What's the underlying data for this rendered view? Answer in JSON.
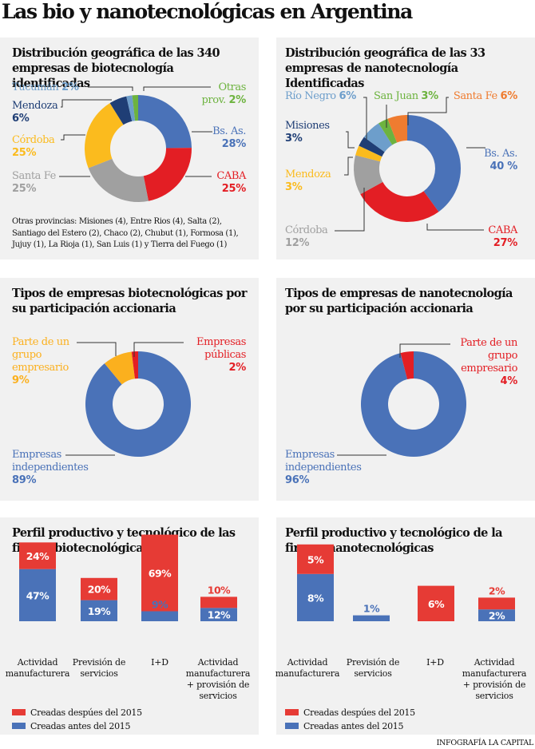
{
  "title": "Las bio y nanotecnológicas en Argentina",
  "credit": "INFOGRAFÍA LA CAPITAL",
  "colors": {
    "blue": "#4a72b8",
    "red": "#e31e24",
    "gray": "#a0a0a0",
    "yellow": "#fbbb1e",
    "navy": "#1f3e75",
    "lightblue": "#6d9ecb",
    "green": "#6db33f",
    "orange": "#ef7c30",
    "bar_red": "#e63b35",
    "bar_blue": "#4a72b8"
  },
  "panels": {
    "bio_geo": {
      "title": "Distribución geográfica de las 340 empresas de biotecnología identificadas",
      "note": "Otras provincias: Misiones (4), Entre Rios (4), Salta (2), Santiago del Estero (2), Chaco (2), Chubut (1), Formosa (1), Jujuy (1), La Rioja (1), San Luis (1) y Tierra del Fuego (1)",
      "labels": {
        "tucuman": {
          "name": "Tucumán",
          "value": "2%"
        },
        "otras": {
          "name1": "Otras",
          "name2": "prov.",
          "value": "2%"
        },
        "mendoza": {
          "name": "Mendoza",
          "value": "6%"
        },
        "bsas": {
          "name": "Bs. As.",
          "value": "28%"
        },
        "cordoba": {
          "name": "Córdoba",
          "value": "25%"
        },
        "santafe": {
          "name": "Santa Fe",
          "value": "25%"
        },
        "caba": {
          "name": "CABA",
          "value": "25%"
        }
      }
    },
    "nano_geo": {
      "title": "Distribución geográfica de las 33 empresas de nanotecnología Identificadas",
      "labels": {
        "rionegro": {
          "name": "Río Negro",
          "value": "6%"
        },
        "sanjuan": {
          "name": "San Juan",
          "value": "3%"
        },
        "santafe": {
          "name": "Santa Fe",
          "value": "6%"
        },
        "misiones": {
          "name": "Misiones",
          "value": "3%"
        },
        "bsas": {
          "name": "Bs. As.",
          "value": "40 %"
        },
        "mendoza": {
          "name": "Mendoza",
          "value": "3%"
        },
        "cordoba": {
          "name": "Córdoba",
          "value": "12%"
        },
        "caba": {
          "name": "CABA",
          "value": "27%"
        }
      }
    },
    "bio_types": {
      "title": "Tipos de empresas biotecnológicas por su participación accionaria",
      "labels": {
        "grupo": {
          "l1": "Parte de un",
          "l2": "grupo",
          "l3": "empresario",
          "value": "9%"
        },
        "publicas": {
          "l1": "Empresas",
          "l2": "públicas",
          "value": "2%"
        },
        "indep": {
          "l1": "Empresas",
          "l2": "independientes",
          "value": "89%"
        }
      }
    },
    "nano_types": {
      "title": "Tipos de empresas de nanotecnología por su participación accionaria",
      "labels": {
        "grupo": {
          "l1": "Parte de un",
          "l2": "grupo",
          "l3": "empresario",
          "value": "4%"
        },
        "indep": {
          "l1": "Empresas",
          "l2": "independientes",
          "value": "96%"
        }
      }
    },
    "bio_profile": {
      "title": "Perfil productivo y tecnológico de las firmas biotecnológicas",
      "legend": [
        "Creadas despúes del 2015",
        "Creadas antes del 2015"
      ]
    },
    "nano_profile": {
      "title": "Perfil productivo y tecnológico de la firmas nanotecnológicas",
      "legend": [
        "Creadas despúes del 2015",
        "Creadas antes del 2015"
      ]
    }
  },
  "chart_data": [
    {
      "id": "bio_geo",
      "type": "pie",
      "title": "Distribución geográfica de las 340 empresas de biotecnología identificadas",
      "donut": true,
      "categories": [
        "Bs. As.",
        "CABA",
        "Santa Fe",
        "Córdoba",
        "Mendoza",
        "Tucumán",
        "Otras prov."
      ],
      "values": [
        28,
        25,
        25,
        25,
        6,
        2,
        2
      ],
      "colors": [
        "#4a72b8",
        "#e31e24",
        "#a0a0a0",
        "#fbbb1e",
        "#1f3e75",
        "#6d9ecb",
        "#6db33f"
      ],
      "units": "%"
    },
    {
      "id": "nano_geo",
      "type": "pie",
      "title": "Distribución geográfica de las 33 empresas de nanotecnología Identificadas",
      "donut": true,
      "categories": [
        "Bs. As.",
        "CABA",
        "Córdoba",
        "Mendoza",
        "Misiones",
        "Río Negro",
        "San Juan",
        "Santa Fe"
      ],
      "values": [
        40,
        27,
        12,
        3,
        3,
        6,
        3,
        6
      ],
      "colors": [
        "#4a72b8",
        "#e31e24",
        "#a0a0a0",
        "#fbbb1e",
        "#1f3e75",
        "#6d9ecb",
        "#6db33f",
        "#ef7c30"
      ],
      "units": "%"
    },
    {
      "id": "bio_types",
      "type": "pie",
      "title": "Tipos de empresas biotecnológicas por su participación accionaria",
      "donut": true,
      "categories": [
        "Empresas independientes",
        "Parte de un grupo empresario",
        "Empresas públicas"
      ],
      "values": [
        89,
        9,
        2
      ],
      "colors": [
        "#4a72b8",
        "#fbb01e",
        "#e31e24"
      ],
      "units": "%"
    },
    {
      "id": "nano_types",
      "type": "pie",
      "title": "Tipos de empresas de nanotecnología por su participación accionaria",
      "donut": true,
      "categories": [
        "Empresas independientes",
        "Parte de un grupo empresario"
      ],
      "values": [
        96,
        4
      ],
      "colors": [
        "#4a72b8",
        "#e31e24"
      ],
      "units": "%"
    },
    {
      "id": "bio_profile",
      "type": "bar",
      "stacked": true,
      "title": "Perfil productivo y tecnológico de las firmas biotecnológicas",
      "categories": [
        "Actividad manufacturera",
        "Previsión de servicios",
        "I+D",
        "Actividad manufacturera + provisión de servicios"
      ],
      "series": [
        {
          "name": "Creadas antes del 2015",
          "values": [
            47,
            19,
            9,
            12
          ],
          "color": "#4a72b8"
        },
        {
          "name": "Creadas despúes del 2015",
          "values": [
            24,
            20,
            69,
            10
          ],
          "color": "#e63b35"
        }
      ],
      "legend": "bottom-left",
      "units": "%"
    },
    {
      "id": "nano_profile",
      "type": "bar",
      "stacked": true,
      "title": "Perfil productivo y tecnológico de la firmas nanotecnológicas",
      "categories": [
        "Actividad manufacturera",
        "Previsión de servicios",
        "I+D",
        "Actividad manufacturera + provisión de servicios"
      ],
      "series": [
        {
          "name": "Creadas antes del 2015",
          "values": [
            8,
            1,
            0,
            2
          ],
          "color": "#4a72b8"
        },
        {
          "name": "Creadas despúes del 2015",
          "values": [
            5,
            0,
            6,
            2
          ],
          "color": "#e63b35"
        }
      ],
      "legend": "bottom-left",
      "units": "%"
    }
  ]
}
